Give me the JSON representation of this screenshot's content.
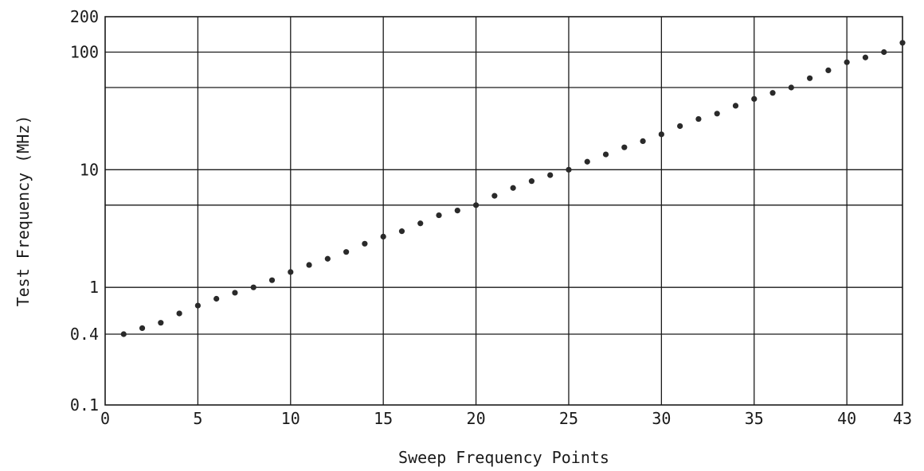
{
  "chart_data": {
    "type": "scatter",
    "title": "",
    "xlabel": "Sweep Frequency Points",
    "ylabel": "Test Frequency (MHz)",
    "x_scale": "linear",
    "y_scale": "log",
    "xlim": [
      0,
      43
    ],
    "ylim": [
      0.1,
      200
    ],
    "x_ticks": [
      0,
      5,
      10,
      15,
      20,
      25,
      30,
      35,
      40,
      43
    ],
    "x_tick_labels": [
      "0",
      "5",
      "10",
      "15",
      "20",
      "25",
      "30",
      "35",
      "40",
      "43"
    ],
    "y_ticks": [
      0.1,
      0.4,
      1,
      10,
      100,
      200
    ],
    "y_tick_labels": [
      "0.1",
      "0.4",
      "1",
      "10",
      "100",
      "200"
    ],
    "y_gridlines": [
      0.4,
      1,
      5,
      10,
      50,
      100
    ],
    "x_gridlines": [
      5,
      10,
      15,
      20,
      25,
      30,
      35,
      40
    ],
    "grid": true,
    "legend": "none",
    "marker_color": "#2a2a2a",
    "series": [
      {
        "x": [
          1,
          2,
          3,
          4,
          5,
          6,
          7,
          8,
          9,
          10,
          11,
          12,
          13,
          14,
          15,
          16,
          17,
          18,
          19,
          20,
          21,
          22,
          23,
          24,
          25,
          26,
          27,
          28,
          29,
          30,
          31,
          32,
          33,
          34,
          35,
          36,
          37,
          38,
          39,
          40,
          41,
          42,
          43
        ],
        "y": [
          0.4,
          0.45,
          0.5,
          0.6,
          0.7,
          0.8,
          0.9,
          1.0,
          1.15,
          1.35,
          1.55,
          1.75,
          2.0,
          2.35,
          2.7,
          3.0,
          3.5,
          4.1,
          4.5,
          5.0,
          6.0,
          7.0,
          8.0,
          9.0,
          10.0,
          11.7,
          13.5,
          15.5,
          17.5,
          20.0,
          23.5,
          27.0,
          30.0,
          35.0,
          40.0,
          45.0,
          50.0,
          60.0,
          70.0,
          82.0,
          90.0,
          100.0,
          120.0
        ]
      }
    ]
  }
}
